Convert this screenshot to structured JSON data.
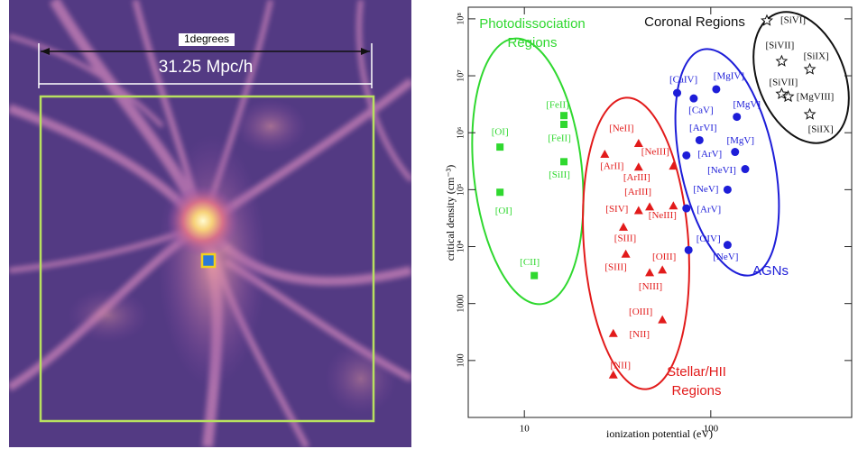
{
  "image": {
    "scale_label": "1degrees",
    "distance_label": "31.25 Mpc/h"
  },
  "chart_data": {
    "type": "scatter",
    "xlabel": "ionization potential (eV)",
    "ylabel": "critical density (cm⁻³)",
    "log_x": true,
    "log_y": true,
    "xlim": [
      5,
      570
    ],
    "ylim": [
      10,
      160000000
    ],
    "xticks": [
      10,
      100
    ],
    "yticks": [
      100,
      1000,
      {
        "value": 10000,
        "label": "10⁴"
      },
      {
        "value": 100000,
        "label": "10⁵"
      },
      {
        "value": 1000000,
        "label": "10⁶"
      },
      {
        "value": 10000000,
        "label": "10⁷"
      },
      {
        "value": 100000000,
        "label": "10⁸"
      }
    ],
    "series": [
      {
        "name": "Photodissociation Regions",
        "color": "#2fd82f",
        "marker": "square",
        "labels": [
          "[OI]",
          "[OI]",
          "[CII]",
          "[FeII]",
          "[FeII]",
          "[SiII]"
        ],
        "x": [
          7.4,
          7.4,
          11.3,
          16.3,
          16.3,
          16.3
        ],
        "values": [
          560000,
          90000,
          3100,
          2000000,
          1400000,
          310000
        ]
      },
      {
        "name": "Stellar/HII Regions",
        "color": "#e21b1b",
        "marker": "triangle",
        "labels": [
          "[ArII]",
          "[NeII]",
          "[NeIII]",
          "[ArIII]",
          "[ArIII]",
          "[NeIII]",
          "[SIV]",
          "[SIII]",
          "[SIII]",
          "[NIII]",
          "[OIII]",
          "[OIII]",
          "[NII]",
          "[NII]"
        ],
        "x": [
          27,
          41,
          63,
          41,
          47,
          63,
          41,
          34,
          35,
          47,
          55,
          55,
          30,
          30
        ],
        "values": [
          420000,
          650000,
          260000,
          250000,
          50000,
          52000,
          43000,
          22000,
          7400,
          3500,
          3900,
          520,
          300,
          56
        ]
      },
      {
        "name": "AGNs",
        "color": "#1d1dd8",
        "marker": "circle",
        "labels": [
          "[CaIV]",
          "[MgIV]",
          "[CaV]",
          "[MgV]",
          "[ArVI]",
          "[MgV]",
          "[ArV]",
          "[NeVI]",
          "[NeV]",
          "[ArV]",
          "[OIV]",
          "[NeV]"
        ],
        "x": [
          66,
          107,
          81,
          138,
          87,
          135,
          74,
          153,
          123,
          74,
          76,
          123
        ],
        "values": [
          5000000,
          5800000,
          4000000,
          1900000,
          740000,
          460000,
          400000,
          230000,
          100000,
          47000,
          8700,
          10700
        ]
      },
      {
        "name": "Coronal Regions",
        "color": "#111111",
        "marker": "star",
        "labels": [
          "[SiVI]",
          "[SiVII]",
          "[SiIX]",
          "[SiVII]",
          "[MgVIII]",
          "[SiIX]"
        ],
        "x": [
          200,
          240,
          340,
          240,
          260,
          340
        ],
        "values": [
          93000000,
          18000000,
          13000000,
          4800000,
          4300000,
          2100000
        ]
      }
    ]
  }
}
